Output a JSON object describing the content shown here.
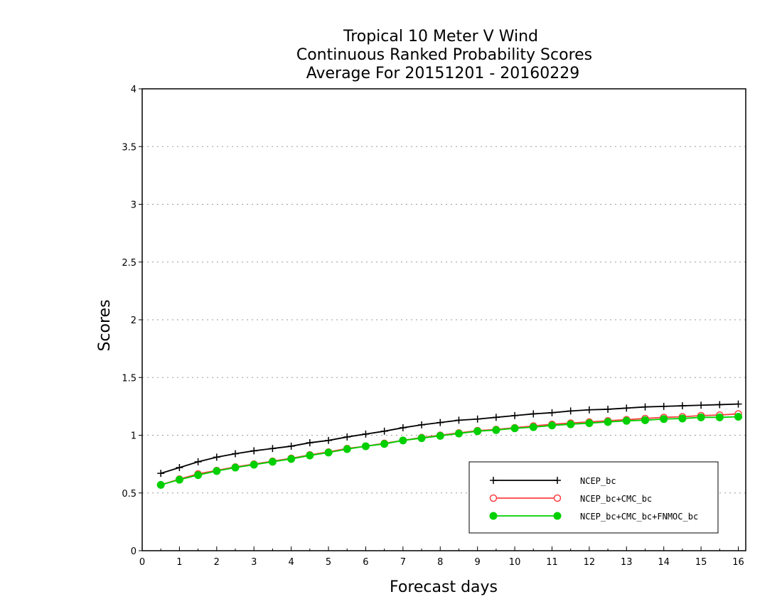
{
  "chart_data": {
    "type": "line",
    "title_lines": [
      "Tropical 10 Meter V Wind",
      "Continuous Ranked Probability Scores",
      "Average For 20151201 - 20160229"
    ],
    "xlabel": "Forecast days",
    "ylabel": "Scores",
    "xlim": [
      0,
      16.2
    ],
    "ylim": [
      0,
      4
    ],
    "x_ticks": [
      0,
      1,
      2,
      3,
      4,
      5,
      6,
      7,
      8,
      9,
      10,
      11,
      12,
      13,
      14,
      15,
      16
    ],
    "x_tick_labels": [
      "0",
      "1",
      "2",
      "3",
      "4",
      "5",
      "6",
      "7",
      "8",
      "9",
      "10",
      "11",
      "12",
      "13",
      "14",
      "15",
      "16"
    ],
    "y_ticks": [
      0,
      0.5,
      1,
      1.5,
      2,
      2.5,
      3,
      3.5,
      4
    ],
    "y_tick_labels": [
      "0",
      "0.5",
      "1",
      "1.5",
      "2",
      "2.5",
      "3",
      "3.5",
      "4"
    ],
    "grid": "horizontal-dotted",
    "legend_position": "bottom-right",
    "x": [
      0.5,
      1,
      1.5,
      2,
      2.5,
      3,
      3.5,
      4,
      4.5,
      5,
      5.5,
      6,
      6.5,
      7,
      7.5,
      8,
      8.5,
      9,
      9.5,
      10,
      10.5,
      11,
      11.5,
      12,
      12.5,
      13,
      13.5,
      14,
      14.5,
      15,
      15.5,
      16
    ],
    "series": [
      {
        "name": "NCEP_bc",
        "color": "#000000",
        "marker": "plus",
        "values": [
          0.67,
          0.72,
          0.77,
          0.81,
          0.84,
          0.865,
          0.885,
          0.905,
          0.935,
          0.955,
          0.985,
          1.01,
          1.035,
          1.065,
          1.09,
          1.11,
          1.13,
          1.14,
          1.155,
          1.17,
          1.185,
          1.195,
          1.21,
          1.22,
          1.225,
          1.235,
          1.245,
          1.25,
          1.255,
          1.26,
          1.265,
          1.27
        ]
      },
      {
        "name": "NCEP_bc+CMC_bc",
        "color": "#ff4040",
        "marker": "open-circle",
        "values": [
          0.57,
          0.62,
          0.665,
          0.695,
          0.725,
          0.75,
          0.775,
          0.8,
          0.83,
          0.855,
          0.885,
          0.905,
          0.93,
          0.955,
          0.98,
          1.0,
          1.02,
          1.04,
          1.05,
          1.065,
          1.08,
          1.095,
          1.105,
          1.115,
          1.125,
          1.135,
          1.145,
          1.155,
          1.16,
          1.17,
          1.175,
          1.185
        ]
      },
      {
        "name": "NCEP_bc+CMC_bc+FNMOC_bc",
        "color": "#00d000",
        "marker": "filled-circle",
        "values": [
          0.57,
          0.615,
          0.655,
          0.69,
          0.72,
          0.745,
          0.77,
          0.795,
          0.825,
          0.85,
          0.88,
          0.905,
          0.925,
          0.955,
          0.975,
          0.995,
          1.015,
          1.035,
          1.045,
          1.06,
          1.07,
          1.085,
          1.095,
          1.105,
          1.115,
          1.125,
          1.13,
          1.14,
          1.145,
          1.155,
          1.155,
          1.16
        ]
      }
    ]
  }
}
